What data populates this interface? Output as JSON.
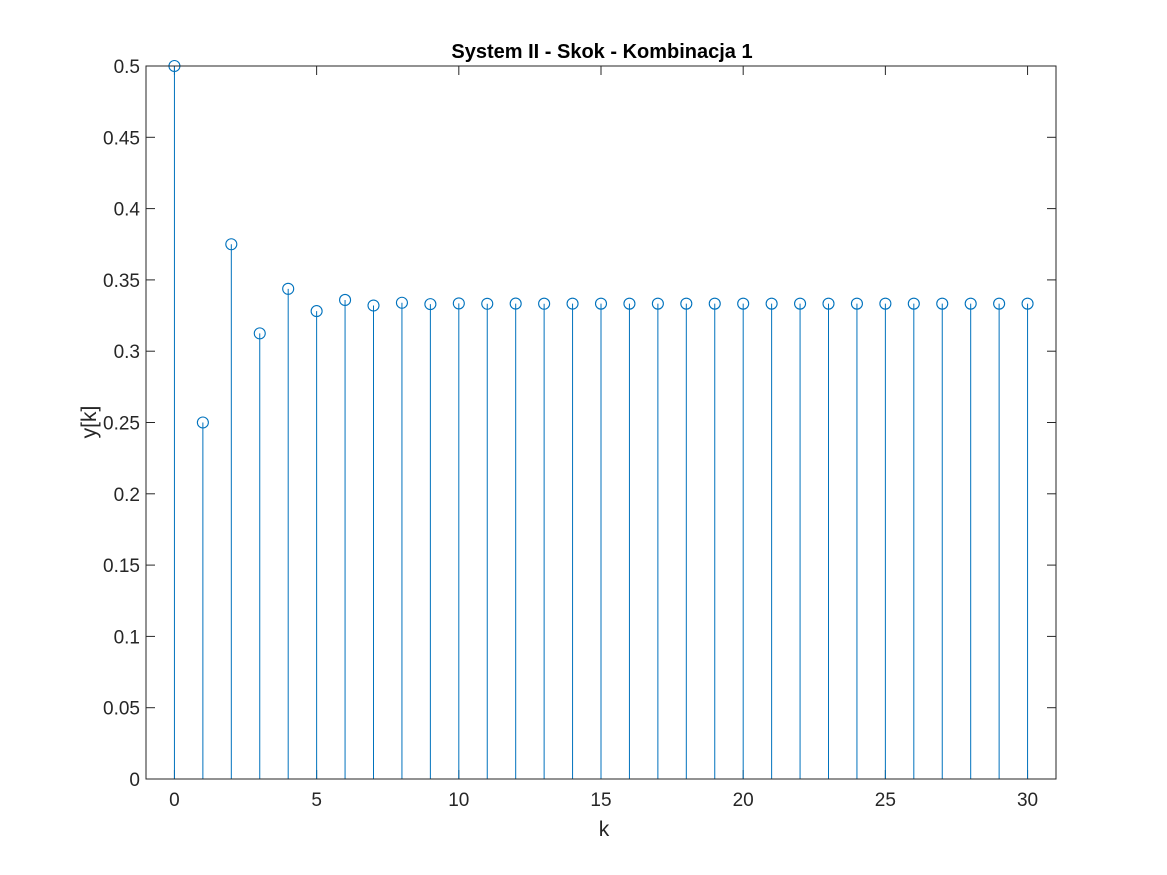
{
  "chart_data": {
    "type": "stem",
    "title": "System II - Skok - Kombinacja 1",
    "xlabel": "k",
    "ylabel": "y[k]",
    "xlim": [
      -1,
      31
    ],
    "ylim": [
      0,
      0.5
    ],
    "xticks": [
      0,
      5,
      10,
      15,
      20,
      25,
      30
    ],
    "xtick_labels": [
      "0",
      "5",
      "10",
      "15",
      "20",
      "25",
      "30"
    ],
    "yticks": [
      0,
      0.05,
      0.1,
      0.15,
      0.2,
      0.25,
      0.3,
      0.35,
      0.4,
      0.45,
      0.5
    ],
    "ytick_labels": [
      "0",
      "0.05",
      "0.1",
      "0.15",
      "0.2",
      "0.25",
      "0.3",
      "0.35",
      "0.4",
      "0.45",
      "0.5"
    ],
    "grid": false,
    "box": true,
    "series": [
      {
        "color": "#0072BD",
        "marker": "circle-open",
        "x": [
          0,
          1,
          2,
          3,
          4,
          5,
          6,
          7,
          8,
          9,
          10,
          11,
          12,
          13,
          14,
          15,
          16,
          17,
          18,
          19,
          20,
          21,
          22,
          23,
          24,
          25,
          26,
          27,
          28,
          29,
          30
        ],
        "y": [
          0.5,
          0.25,
          0.375,
          0.3125,
          0.34375,
          0.328125,
          0.3359375,
          0.33203125,
          0.333984375,
          0.3330078125,
          0.3334960938,
          0.3332519531,
          0.3333740234,
          0.3333129883,
          0.3333435059,
          0.3333282471,
          0.3333358765,
          0.3333320618,
          0.3333339691,
          0.3333330154,
          0.3333334923,
          0.3333332539,
          0.3333333731,
          0.3333333135,
          0.3333333433,
          0.3333333284,
          0.3333333358,
          0.3333333321,
          0.333333334,
          0.333333333,
          0.3333333335
        ]
      }
    ]
  }
}
